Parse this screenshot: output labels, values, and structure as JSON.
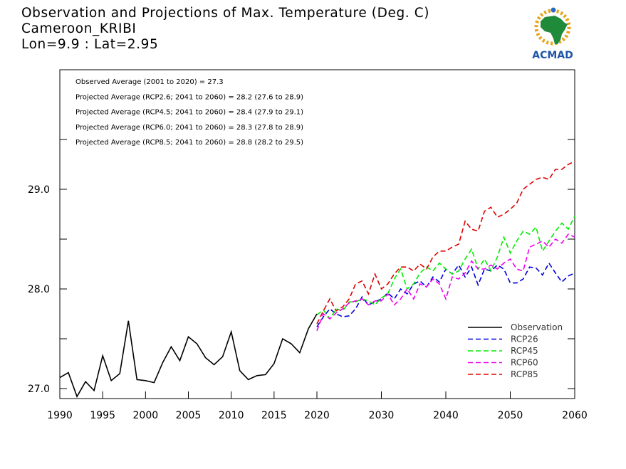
{
  "title": {
    "line1": "Observation and Projections of Max. Temperature (Deg. C)",
    "line2": "Cameroon_KRIBI",
    "line3": "Lon=9.9 : Lat=2.95"
  },
  "logo": {
    "text": "ACMAD",
    "icon": "africa-sun-logo-icon"
  },
  "annotations": [
    "Observed Average (2001 to 2020) = 27.3",
    "Projected Average (RCP2.6; 2041 to 2060) = 28.2 (27.6 to 28.9)",
    "Projected Average (RCP4.5; 2041 to 2060) = 28.4 (27.9 to 29.1)",
    "Projected Average (RCP6.0; 2041 to 2060) = 28.3 (27.8 to 28.9)",
    "Projected Average (RCP8.5; 2041 to 2060) = 28.8 (28.2 to 29.5)"
  ],
  "colors": {
    "Observation": "#000000",
    "RCP26": "#0000dd",
    "RCP45": "#00ee00",
    "RCP60": "#ee00ee",
    "RCP85": "#dd0000"
  },
  "chart_data": {
    "type": "line",
    "xlabel": "",
    "ylabel": "",
    "xlim": [
      1990,
      2060
    ],
    "ylim": [
      26.9,
      30.2
    ],
    "x_ticks": [
      "1990",
      "1995",
      "2000",
      "2005",
      "2010",
      "2015",
      "2020",
      "2030",
      "2040",
      "2050",
      "2060"
    ],
    "x_tick_values": [
      1990,
      1995,
      2000,
      2005,
      2010,
      2015,
      2020,
      2030,
      2040,
      2050,
      2060
    ],
    "x_breakpoint": 2020,
    "y_ticks": [
      "27.0",
      "28.0",
      "29.0"
    ],
    "y_tick_values": [
      27.0,
      28.0,
      29.0
    ],
    "legend_position": "bottom-right",
    "series": [
      {
        "name": "Observation",
        "style": "solid",
        "x": [
          1990,
          1991,
          1992,
          1993,
          1994,
          1995,
          1996,
          1997,
          1998,
          1999,
          2000,
          2001,
          2002,
          2003,
          2004,
          2005,
          2006,
          2007,
          2008,
          2009,
          2010,
          2011,
          2012,
          2013,
          2014,
          2015,
          2016,
          2017,
          2018,
          2019,
          2020
        ],
        "values": [
          27.11,
          27.16,
          26.92,
          27.07,
          26.98,
          27.33,
          27.08,
          27.15,
          27.68,
          27.09,
          27.08,
          27.06,
          27.26,
          27.42,
          27.28,
          27.52,
          27.45,
          27.31,
          27.24,
          27.32,
          27.57,
          27.18,
          27.09,
          27.13,
          27.14,
          27.25,
          27.5,
          27.45,
          27.36,
          27.6,
          27.75
        ]
      },
      {
        "name": "RCP26",
        "style": "dashed",
        "x": [
          2020,
          2021,
          2022,
          2023,
          2024,
          2025,
          2026,
          2027,
          2028,
          2029,
          2030,
          2031,
          2032,
          2033,
          2034,
          2035,
          2036,
          2037,
          2038,
          2039,
          2040,
          2041,
          2042,
          2043,
          2044,
          2045,
          2046,
          2047,
          2048,
          2049,
          2050,
          2051,
          2052,
          2053,
          2054,
          2055,
          2056,
          2057,
          2058,
          2059,
          2060
        ],
        "values": [
          27.62,
          27.72,
          27.8,
          27.75,
          27.72,
          27.73,
          27.8,
          27.92,
          27.84,
          27.87,
          27.9,
          27.96,
          27.9,
          28.0,
          27.95,
          28.05,
          28.08,
          28.02,
          28.12,
          28.07,
          28.2,
          28.15,
          28.24,
          28.12,
          28.22,
          28.04,
          28.2,
          28.18,
          28.24,
          28.2,
          28.06,
          28.06,
          28.1,
          28.22,
          28.21,
          28.14,
          28.26,
          28.16,
          28.07,
          28.13,
          28.16
        ]
      },
      {
        "name": "RCP45",
        "style": "dashed",
        "x": [
          2020,
          2021,
          2022,
          2023,
          2024,
          2025,
          2026,
          2027,
          2028,
          2029,
          2030,
          2031,
          2032,
          2033,
          2034,
          2035,
          2036,
          2037,
          2038,
          2039,
          2040,
          2041,
          2042,
          2043,
          2044,
          2045,
          2046,
          2047,
          2048,
          2049,
          2050,
          2051,
          2052,
          2053,
          2054,
          2055,
          2056,
          2057,
          2058,
          2059,
          2060
        ],
        "values": [
          27.74,
          27.79,
          27.7,
          27.8,
          27.78,
          27.87,
          27.87,
          27.9,
          27.88,
          27.84,
          27.91,
          27.95,
          28.1,
          28.2,
          28.0,
          28.05,
          28.16,
          28.22,
          28.18,
          28.26,
          28.2,
          28.15,
          28.18,
          28.3,
          28.4,
          28.2,
          28.3,
          28.18,
          28.32,
          28.52,
          28.36,
          28.48,
          28.58,
          28.55,
          28.62,
          28.38,
          28.48,
          28.58,
          28.66,
          28.6,
          28.73
        ]
      },
      {
        "name": "RCP60",
        "style": "dashed",
        "x": [
          2020,
          2021,
          2022,
          2023,
          2024,
          2025,
          2026,
          2027,
          2028,
          2029,
          2030,
          2031,
          2032,
          2033,
          2034,
          2035,
          2036,
          2037,
          2038,
          2039,
          2040,
          2041,
          2042,
          2043,
          2044,
          2045,
          2046,
          2047,
          2048,
          2049,
          2050,
          2051,
          2052,
          2053,
          2054,
          2055,
          2056,
          2057,
          2058,
          2059,
          2060
        ],
        "values": [
          27.58,
          27.75,
          27.7,
          27.76,
          27.8,
          27.86,
          27.88,
          27.9,
          27.84,
          27.88,
          27.88,
          27.95,
          27.84,
          27.9,
          28.0,
          27.9,
          28.05,
          28.02,
          28.1,
          28.05,
          27.9,
          28.12,
          28.1,
          28.16,
          28.28,
          28.2,
          28.2,
          28.24,
          28.2,
          28.26,
          28.3,
          28.2,
          28.18,
          28.42,
          28.45,
          28.48,
          28.42,
          28.5,
          28.46,
          28.55,
          28.52
        ]
      },
      {
        "name": "RCP85",
        "style": "dashed",
        "x": [
          2020,
          2021,
          2022,
          2023,
          2024,
          2025,
          2026,
          2027,
          2028,
          2029,
          2030,
          2031,
          2032,
          2033,
          2034,
          2035,
          2036,
          2037,
          2038,
          2039,
          2040,
          2041,
          2042,
          2043,
          2044,
          2045,
          2046,
          2047,
          2048,
          2049,
          2050,
          2051,
          2052,
          2053,
          2054,
          2055,
          2056,
          2057,
          2058,
          2059,
          2060
        ],
        "values": [
          27.65,
          27.78,
          27.9,
          27.78,
          27.82,
          27.9,
          28.05,
          28.08,
          27.95,
          28.15,
          28.0,
          28.05,
          28.15,
          28.22,
          28.22,
          28.18,
          28.25,
          28.2,
          28.32,
          28.38,
          28.38,
          28.42,
          28.45,
          28.68,
          28.6,
          28.58,
          28.78,
          28.82,
          28.72,
          28.75,
          28.8,
          28.86,
          29.0,
          29.05,
          29.1,
          29.12,
          29.1,
          29.2,
          29.2,
          29.25,
          29.28
        ]
      }
    ]
  }
}
